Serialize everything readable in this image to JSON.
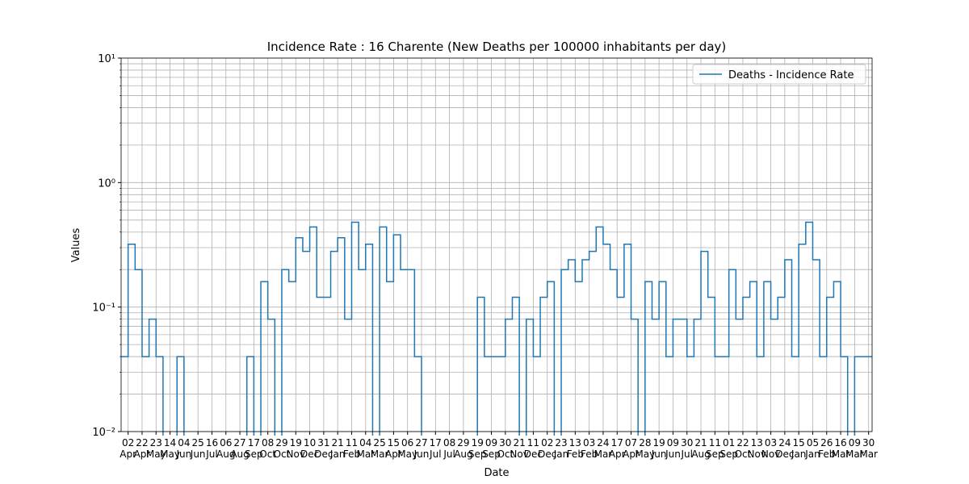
{
  "chart_data": {
    "type": "line",
    "title": "Incidence Rate : 16 Charente (New Deaths per 100000 inhabitants per day)",
    "xlabel": "Date",
    "ylabel": "Values",
    "log_y": true,
    "grid": true,
    "legend": "upper right",
    "drawstyle": "steps",
    "xlim": [
      0,
      1075
    ],
    "ylim": [
      0.01,
      10
    ],
    "yticks": [
      {
        "value": 0.01,
        "label": "10⁻²"
      },
      {
        "value": 0.1,
        "label": "10⁻¹"
      },
      {
        "value": 1,
        "label": "10⁰"
      },
      {
        "value": 10,
        "label": "10¹"
      }
    ],
    "yticks_minor": [
      0.02,
      0.03,
      0.04,
      0.05,
      0.06,
      0.07,
      0.08,
      0.09,
      0.2,
      0.3,
      0.4,
      0.5,
      0.6,
      0.7,
      0.8,
      0.9,
      2,
      3,
      4,
      5,
      6,
      7,
      8,
      9
    ],
    "xticks": [
      {
        "value": 10,
        "label": "02\nApr"
      },
      {
        "value": 30,
        "label": "22\nApr"
      },
      {
        "value": 50,
        "label": "23\nMay"
      },
      {
        "value": 70,
        "label": "14\nMay"
      },
      {
        "value": 90,
        "label": "04\nJun"
      },
      {
        "value": 110,
        "label": "25\nJun"
      },
      {
        "value": 130,
        "label": "16\nJul"
      },
      {
        "value": 150,
        "label": "06\nAug"
      },
      {
        "value": 170,
        "label": "27\nAug"
      },
      {
        "value": 190,
        "label": "17\nSep"
      },
      {
        "value": 210,
        "label": "08\nOct"
      },
      {
        "value": 230,
        "label": "29\nOct"
      },
      {
        "value": 250,
        "label": "19\nNov"
      },
      {
        "value": 270,
        "label": "10\nDec"
      },
      {
        "value": 290,
        "label": "31\nDec"
      },
      {
        "value": 310,
        "label": "21\nJan"
      },
      {
        "value": 330,
        "label": "11\nFeb"
      },
      {
        "value": 350,
        "label": "04\nMar"
      },
      {
        "value": 370,
        "label": "25\nMar"
      },
      {
        "value": 390,
        "label": "15\nApr"
      },
      {
        "value": 410,
        "label": "06\nMay"
      },
      {
        "value": 430,
        "label": "27\nJun"
      },
      {
        "value": 450,
        "label": "17\nJul"
      },
      {
        "value": 470,
        "label": "08\nJul"
      },
      {
        "value": 490,
        "label": "29\nAug"
      },
      {
        "value": 510,
        "label": "19\nSep"
      },
      {
        "value": 530,
        "label": "09\nSep"
      },
      {
        "value": 550,
        "label": "30\nOct"
      },
      {
        "value": 570,
        "label": "21\nNov"
      },
      {
        "value": 590,
        "label": "11\nDec"
      },
      {
        "value": 610,
        "label": "02\nDec"
      },
      {
        "value": 630,
        "label": "23\nJan"
      },
      {
        "value": 650,
        "label": "13\nFeb"
      },
      {
        "value": 670,
        "label": "03\nFeb"
      },
      {
        "value": 690,
        "label": "24\nMar"
      },
      {
        "value": 710,
        "label": "17\nApr"
      },
      {
        "value": 730,
        "label": "07\nApr"
      },
      {
        "value": 750,
        "label": "28\nMay"
      },
      {
        "value": 770,
        "label": "19\nJun"
      },
      {
        "value": 790,
        "label": "09\nJun"
      },
      {
        "value": 810,
        "label": "30\nJul"
      },
      {
        "value": 830,
        "label": "21\nAug"
      },
      {
        "value": 850,
        "label": "11\nSep"
      },
      {
        "value": 870,
        "label": "01\nSep"
      },
      {
        "value": 890,
        "label": "22\nOct"
      },
      {
        "value": 910,
        "label": "13\nNov"
      },
      {
        "value": 930,
        "label": "03\nNov"
      },
      {
        "value": 950,
        "label": "24\nDec"
      },
      {
        "value": 970,
        "label": "15\nJan"
      },
      {
        "value": 990,
        "label": "05\nJan"
      },
      {
        "value": 1010,
        "label": "26\nFeb"
      },
      {
        "value": 1030,
        "label": "16\nMar"
      },
      {
        "value": 1050,
        "label": "09\nMar"
      },
      {
        "value": 1070,
        "label": "30\nMar"
      }
    ],
    "x": [
      0,
      10,
      20,
      30,
      40,
      50,
      60,
      70,
      80,
      90,
      100,
      110,
      120,
      130,
      140,
      150,
      160,
      170,
      180,
      190,
      200,
      210,
      220,
      230,
      240,
      250,
      260,
      270,
      280,
      290,
      300,
      310,
      320,
      330,
      340,
      350,
      360,
      370,
      380,
      390,
      400,
      410,
      420,
      430,
      440,
      450,
      460,
      470,
      480,
      490,
      500,
      510,
      520,
      530,
      540,
      550,
      560,
      570,
      580,
      590,
      600,
      610,
      620,
      630,
      640,
      650,
      660,
      670,
      680,
      690,
      700,
      710,
      720,
      730,
      740,
      750,
      760,
      770,
      780,
      790,
      800,
      810,
      820,
      830,
      840,
      850,
      860,
      870,
      880,
      890,
      900,
      910,
      920,
      930,
      940,
      950,
      960,
      970,
      980,
      990,
      1000,
      1010,
      1020,
      1030,
      1040,
      1050,
      1060,
      1070
    ],
    "series": [
      {
        "name": "Deaths - Incidence Rate",
        "color": "#1f77b4",
        "values": [
          0.04,
          0.32,
          0.2,
          0.04,
          0.08,
          0.04,
          0,
          0,
          0.04,
          0,
          0,
          0,
          0,
          0,
          0,
          0,
          0,
          0,
          0.04,
          0,
          0.16,
          0.08,
          0,
          0.2,
          0.16,
          0.36,
          0.28,
          0.44,
          0.12,
          0.12,
          0.28,
          0.36,
          0.08,
          0.48,
          0.2,
          0.32,
          0,
          0.44,
          0.16,
          0.38,
          0.2,
          0.2,
          0.04,
          0,
          0,
          0,
          0,
          0,
          0,
          0,
          0,
          0.12,
          0.04,
          0.04,
          0.04,
          0.08,
          0.12,
          0,
          0.08,
          0.04,
          0.12,
          0.16,
          0,
          0.2,
          0.24,
          0.16,
          0.24,
          0.28,
          0.44,
          0.32,
          0.2,
          0.12,
          0.32,
          0.08,
          0,
          0.16,
          0.08,
          0.16,
          0.04,
          0.08,
          0.08,
          0.04,
          0.08,
          0.28,
          0.12,
          0.04,
          0.04,
          0.2,
          0.08,
          0.12,
          0.16,
          0.04,
          0.16,
          0.08,
          0.12,
          0.24,
          0.04,
          0.32,
          0.48,
          0.24,
          0.04,
          0.12,
          0.16,
          0.04,
          0,
          0.04,
          0.04,
          0.04
        ]
      }
    ]
  }
}
